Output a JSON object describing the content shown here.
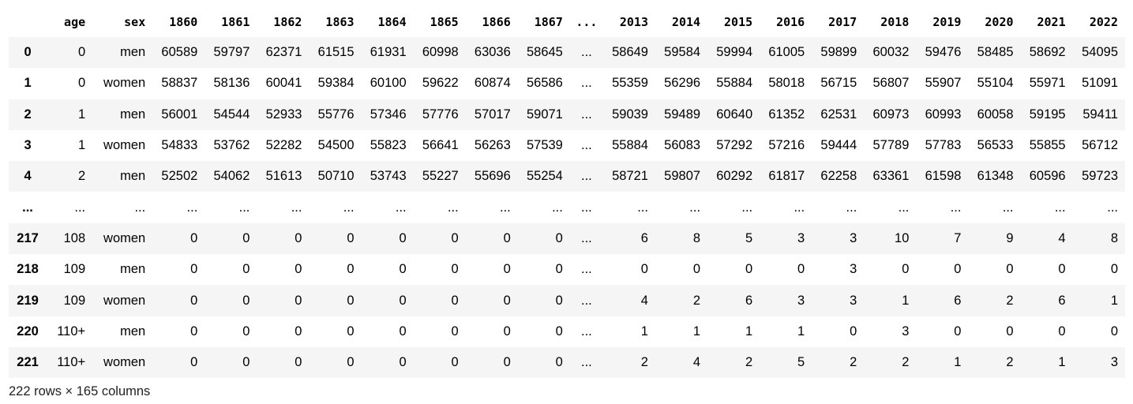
{
  "table": {
    "corner": "",
    "columns": [
      "age",
      "sex",
      "1860",
      "1861",
      "1862",
      "1863",
      "1864",
      "1865",
      "1866",
      "1867",
      "...",
      "2013",
      "2014",
      "2015",
      "2016",
      "2017",
      "2018",
      "2019",
      "2020",
      "2021",
      "2022"
    ],
    "rows": [
      {
        "index": "0",
        "cells": [
          "0",
          "men",
          "60589",
          "59797",
          "62371",
          "61515",
          "61931",
          "60998",
          "63036",
          "58645",
          "...",
          "58649",
          "59584",
          "59994",
          "61005",
          "59899",
          "60032",
          "59476",
          "58485",
          "58692",
          "54095"
        ]
      },
      {
        "index": "1",
        "cells": [
          "0",
          "women",
          "58837",
          "58136",
          "60041",
          "59384",
          "60100",
          "59622",
          "60874",
          "56586",
          "...",
          "55359",
          "56296",
          "55884",
          "58018",
          "56715",
          "56807",
          "55907",
          "55104",
          "55971",
          "51091"
        ]
      },
      {
        "index": "2",
        "cells": [
          "1",
          "men",
          "56001",
          "54544",
          "52933",
          "55776",
          "57346",
          "57776",
          "57017",
          "59071",
          "...",
          "59039",
          "59489",
          "60640",
          "61352",
          "62531",
          "60973",
          "60993",
          "60058",
          "59195",
          "59411"
        ]
      },
      {
        "index": "3",
        "cells": [
          "1",
          "women",
          "54833",
          "53762",
          "52282",
          "54500",
          "55823",
          "56641",
          "56263",
          "57539",
          "...",
          "55884",
          "56083",
          "57292",
          "57216",
          "59444",
          "57789",
          "57783",
          "56533",
          "55855",
          "56712"
        ]
      },
      {
        "index": "4",
        "cells": [
          "2",
          "men",
          "52502",
          "54062",
          "51613",
          "50710",
          "53743",
          "55227",
          "55696",
          "55254",
          "...",
          "58721",
          "59807",
          "60292",
          "61817",
          "62258",
          "63361",
          "61598",
          "61348",
          "60596",
          "59723"
        ]
      },
      {
        "index": "...",
        "cells": [
          "...",
          "...",
          "...",
          "...",
          "...",
          "...",
          "...",
          "...",
          "...",
          "...",
          "...",
          "...",
          "...",
          "...",
          "...",
          "...",
          "...",
          "...",
          "...",
          "...",
          "..."
        ]
      },
      {
        "index": "217",
        "cells": [
          "108",
          "women",
          "0",
          "0",
          "0",
          "0",
          "0",
          "0",
          "0",
          "0",
          "...",
          "6",
          "8",
          "5",
          "3",
          "3",
          "10",
          "7",
          "9",
          "4",
          "8"
        ]
      },
      {
        "index": "218",
        "cells": [
          "109",
          "men",
          "0",
          "0",
          "0",
          "0",
          "0",
          "0",
          "0",
          "0",
          "...",
          "0",
          "0",
          "0",
          "0",
          "3",
          "0",
          "0",
          "0",
          "0",
          "0"
        ]
      },
      {
        "index": "219",
        "cells": [
          "109",
          "women",
          "0",
          "0",
          "0",
          "0",
          "0",
          "0",
          "0",
          "0",
          "...",
          "4",
          "2",
          "6",
          "3",
          "3",
          "1",
          "6",
          "2",
          "6",
          "1"
        ]
      },
      {
        "index": "220",
        "cells": [
          "110+",
          "men",
          "0",
          "0",
          "0",
          "0",
          "0",
          "0",
          "0",
          "0",
          "...",
          "1",
          "1",
          "1",
          "1",
          "0",
          "3",
          "0",
          "0",
          "0",
          "0"
        ]
      },
      {
        "index": "221",
        "cells": [
          "110+",
          "women",
          "0",
          "0",
          "0",
          "0",
          "0",
          "0",
          "0",
          "0",
          "...",
          "2",
          "4",
          "2",
          "5",
          "2",
          "2",
          "1",
          "2",
          "1",
          "3"
        ]
      }
    ]
  },
  "footer": "222 rows × 165 columns",
  "colors": {
    "stripe": "#f5f5f5",
    "background": "#ffffff"
  }
}
